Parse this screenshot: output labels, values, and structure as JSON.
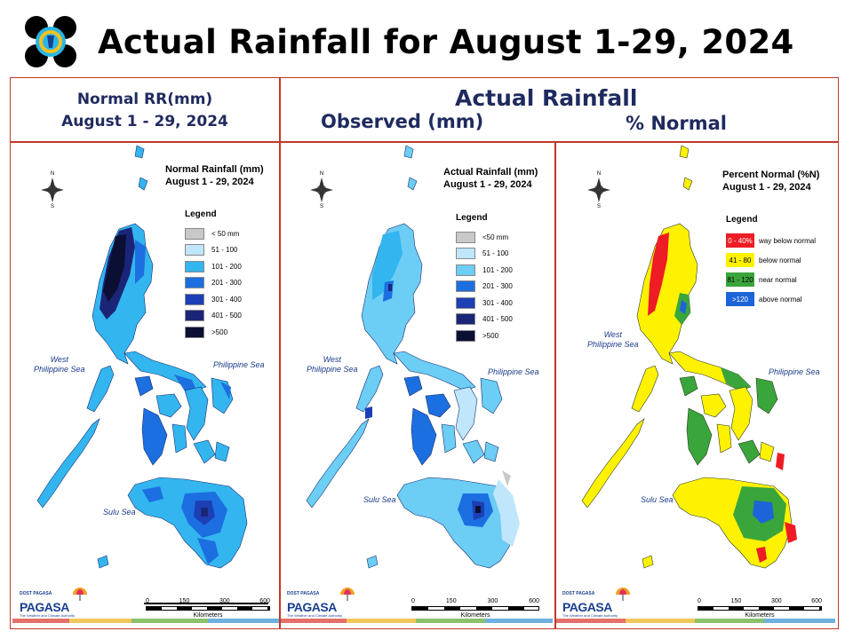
{
  "slide": {
    "title": "Actual Rainfall for August 1-29, 2024"
  },
  "headers": {
    "left_line1": "Normal RR(mm)",
    "left_line2": "August 1 - 29, 2024",
    "actual": "Actual Rainfall",
    "observed": "Observed (mm)",
    "percent": "% Normal"
  },
  "panels": {
    "normal": {
      "title1": "Normal Rainfall (mm)",
      "title2": "August 1 - 29, 2024",
      "legend_title": "Legend",
      "legend": [
        {
          "label": "< 50 mm",
          "color": "#c8c8c8"
        },
        {
          "label": "51 - 100",
          "color": "#bfe6fb"
        },
        {
          "label": "101 - 200",
          "color": "#33b5f0"
        },
        {
          "label": "201 - 300",
          "color": "#1c6fe0"
        },
        {
          "label": "301 - 400",
          "color": "#1d3fb5"
        },
        {
          "label": "401 - 500",
          "color": "#1b2577"
        },
        {
          "label": ">500",
          "color": "#0b0f33"
        }
      ]
    },
    "observed": {
      "title1": "Actual Rainfall (mm)",
      "title2": "August 1 - 29, 2024",
      "legend_title": "Legend",
      "legend": [
        {
          "label": "<50 mm",
          "color": "#c8c8c8"
        },
        {
          "label": "51 - 100",
          "color": "#bfe6fb"
        },
        {
          "label": "101 - 200",
          "color": "#6ccdf5"
        },
        {
          "label": "201 - 300",
          "color": "#1c6fe0"
        },
        {
          "label": "301 - 400",
          "color": "#1d3fb5"
        },
        {
          "label": "401 - 500",
          "color": "#1b2577"
        },
        {
          "label": ">500",
          "color": "#0b0f33"
        }
      ]
    },
    "percent": {
      "title1": "Percent Normal (%N)",
      "title2": "August 1 - 29, 2024",
      "legend_title": "Legend",
      "legend": [
        {
          "code": "0 - 40%",
          "label": "way below normal",
          "color": "#ee1c24",
          "text_color": "#ffffff"
        },
        {
          "code": "41 - 80",
          "label": "below normal",
          "color": "#fff200",
          "text_color": "#000000"
        },
        {
          "code": "81 - 120",
          "label": "near normal",
          "color": "#3aa53a",
          "text_color": "#000000"
        },
        {
          "code": ">120",
          "label": "above normal",
          "color": "#1c64d8",
          "text_color": "#ffffff"
        }
      ]
    }
  },
  "map_labels": {
    "west_sea_1": "West",
    "west_sea_2": "Philippine Sea",
    "philippine_sea": "Philippine Sea",
    "sulu_sea": "Sulu Sea",
    "compass_n": "N",
    "compass_s": "S",
    "compass_e": "E",
    "compass_w": "W"
  },
  "scale_bar": {
    "ticks": [
      "0",
      "150",
      "300",
      "600"
    ],
    "unit": "Kilometers"
  },
  "branding": {
    "agency_top": "DOST PAGASA",
    "agency": "PAGASA",
    "tagline": "The Weather and Climate Authority"
  },
  "map_fill": {
    "normal": {
      "base": "#33b5f0",
      "mid": "#1c6fe0",
      "deep": "#1b2577",
      "darkest": "#0b0f33"
    },
    "observed": {
      "base": "#6ccdf5",
      "mid": "#33b5f0",
      "deep": "#1c6fe0",
      "pale": "#bfe6fb",
      "dark": "#1b2577"
    },
    "percent": {
      "base": "#fff200",
      "green": "#3aa53a",
      "red": "#ee1c24",
      "blue": "#1c64d8"
    }
  }
}
